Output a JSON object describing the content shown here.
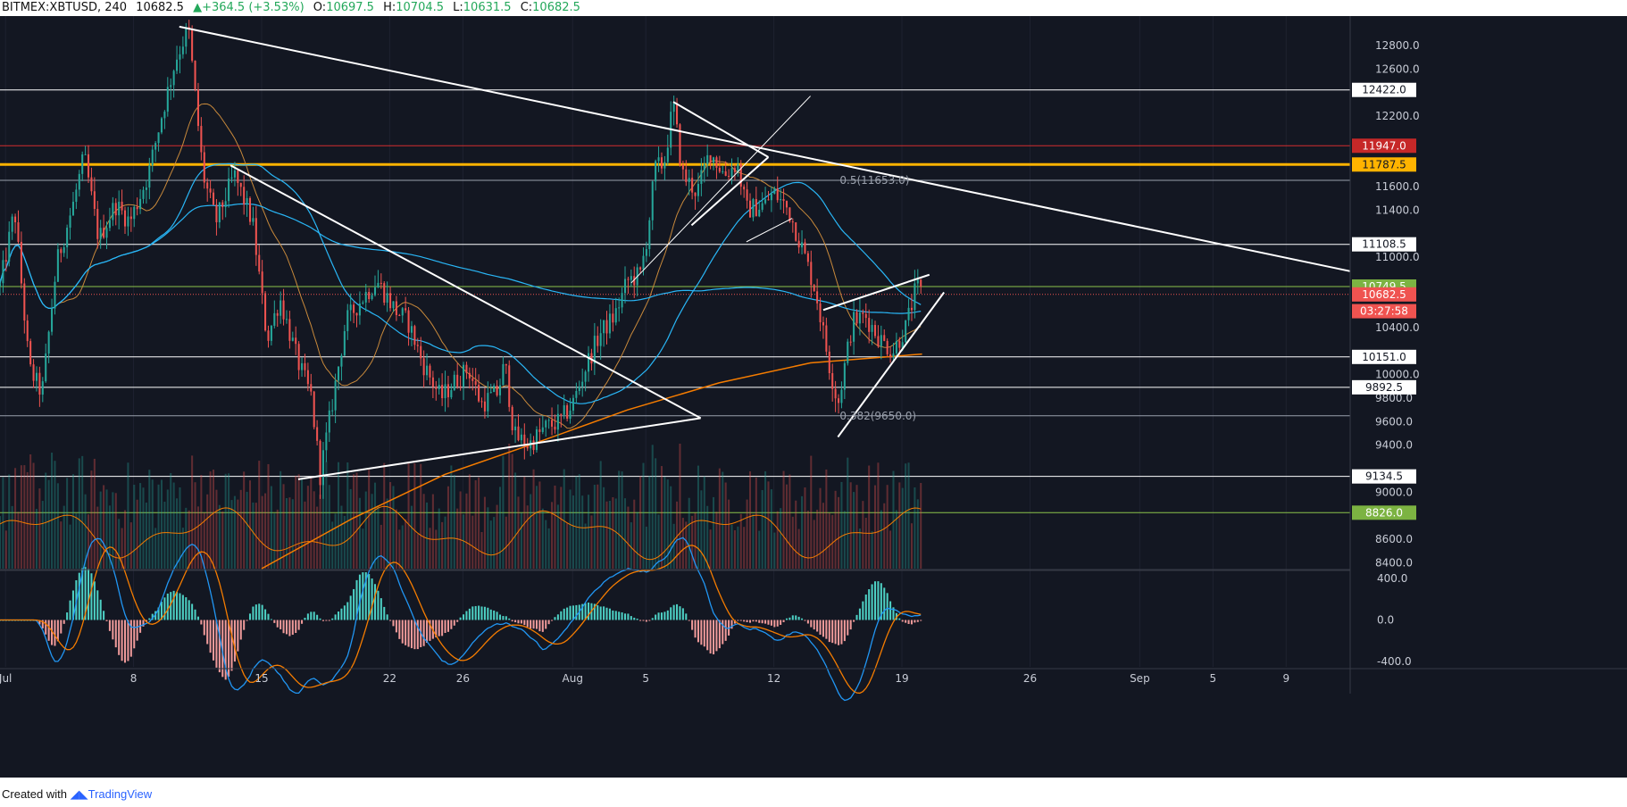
{
  "header": {
    "symbol": "BITMEX:XBTUSD, 240",
    "last": "10682.5",
    "change": "+364.5 (+3.53%)",
    "open_label": "O:",
    "open": "10697.5",
    "high_label": "H:",
    "high": "10704.5",
    "low_label": "L:",
    "low": "10631.5",
    "close_label": "C:",
    "close": "10682.5"
  },
  "footer": {
    "created_with": "Created with",
    "brand": "TradingView"
  },
  "colors": {
    "background": "#131722",
    "bull": "#26a69a",
    "bear": "#ef5350",
    "fib_618_line": "#8bc34a",
    "resistance_red": "#d32f2f",
    "resistance_gold": "#ffb300",
    "trendline": "#ffffff",
    "ma_orange": "#f57c00",
    "ma_blue": "#29b6f6",
    "ma_tan": "#c8893b"
  },
  "chart_data": {
    "type": "candlestick",
    "price_axis": {
      "ylim": [
        8350,
        13050
      ],
      "ticks": [
        "12800.0",
        "12600.0",
        "12200.0",
        "11600.0",
        "11400.0",
        "11000.0",
        "10400.0",
        "10000.0",
        "9800.0",
        "9600.0",
        "9400.0",
        "9000.0",
        "8600.0",
        "8400.0"
      ]
    },
    "time_axis": {
      "labels": [
        {
          "text": "Jul",
          "day": 1
        },
        {
          "text": "8",
          "day": 8
        },
        {
          "text": "15",
          "day": 15
        },
        {
          "text": "22",
          "day": 22
        },
        {
          "text": "26",
          "day": 26
        },
        {
          "text": "Aug",
          "day": 32
        },
        {
          "text": "5",
          "day": 36
        },
        {
          "text": "12",
          "day": 43
        },
        {
          "text": "19",
          "day": 50
        },
        {
          "text": "26",
          "day": 57
        },
        {
          "text": "Sep",
          "day": 63
        },
        {
          "text": "5",
          "day": 67
        },
        {
          "text": "9",
          "day": 71
        }
      ],
      "day_range": [
        0.7,
        74.5
      ]
    },
    "price_tags": [
      {
        "value": "12422.0",
        "price": 12422,
        "style": "white"
      },
      {
        "value": "11947.0",
        "price": 11947,
        "style": "red"
      },
      {
        "value": "11787.5",
        "price": 11787.5,
        "style": "gold"
      },
      {
        "value": "11108.5",
        "price": 11108.5,
        "style": "white"
      },
      {
        "value": "10749.5",
        "price": 10749.5,
        "style": "green"
      },
      {
        "value": "10682.5",
        "price": 10682.5,
        "style": "current"
      },
      {
        "value": "03:27:58",
        "price": 10540,
        "style": "timer"
      },
      {
        "value": "10151.0",
        "price": 10151,
        "style": "white"
      },
      {
        "value": "9892.5",
        "price": 9892.5,
        "style": "white"
      },
      {
        "value": "9134.5",
        "price": 9134.5,
        "style": "white"
      },
      {
        "value": "8826.0",
        "price": 8826,
        "style": "green"
      }
    ],
    "horizontal_levels": [
      {
        "price": 12422,
        "color": "#ffffff",
        "width": 1
      },
      {
        "price": 11947,
        "color": "#d32f2f",
        "width": 1
      },
      {
        "price": 11787.5,
        "color": "#ffb300",
        "width": 3
      },
      {
        "price": 11653,
        "color": "#9aa0ac",
        "width": 1
      },
      {
        "price": 11108.5,
        "color": "#ffffff",
        "width": 1
      },
      {
        "price": 10749.5,
        "color": "#8bc34a",
        "width": 1
      },
      {
        "price": 10151,
        "color": "#ffffff",
        "width": 1
      },
      {
        "price": 9892.5,
        "color": "#ffffff",
        "width": 1
      },
      {
        "price": 9650,
        "color": "#9aa0ac",
        "width": 1
      },
      {
        "price": 9134.5,
        "color": "#ffffff",
        "width": 1
      },
      {
        "price": 8826,
        "color": "#8bc34a",
        "width": 1
      }
    ],
    "fib_labels": [
      {
        "text": "0.5(11653.0)",
        "day": 46.6,
        "price": 11653
      },
      {
        "text": "0.382(9650.0)",
        "day": 46.6,
        "price": 9650
      }
    ],
    "trendlines": [
      {
        "from": [
          10.5,
          12960
        ],
        "to": [
          74.5,
          10880
        ],
        "width": 2
      },
      {
        "from": [
          13.3,
          11780
        ],
        "to": [
          39.0,
          9630
        ],
        "width": 2
      },
      {
        "from": [
          17.0,
          9110
        ],
        "to": [
          39.0,
          9630
        ],
        "width": 2
      },
      {
        "from": [
          37.5,
          12320
        ],
        "to": [
          42.7,
          11850
        ],
        "width": 2
      },
      {
        "from": [
          38.5,
          11270
        ],
        "to": [
          42.7,
          11850
        ],
        "width": 2
      },
      {
        "from": [
          45.7,
          10550
        ],
        "to": [
          51.5,
          10850
        ],
        "width": 2
      },
      {
        "from": [
          46.5,
          9470
        ],
        "to": [
          52.3,
          10700
        ],
        "width": 2
      },
      {
        "from": [
          35.2,
          10780
        ],
        "to": [
          45.0,
          12370
        ],
        "width": 1
      },
      {
        "from": [
          41.5,
          11130
        ],
        "to": [
          44.0,
          11330
        ],
        "width": 1
      }
    ],
    "anchors": [
      {
        "day": 0.7,
        "price": 10750
      },
      {
        "day": 1.5,
        "price": 11400
      },
      {
        "day": 2.3,
        "price": 10050
      },
      {
        "day": 3.0,
        "price": 9840
      },
      {
        "day": 3.8,
        "price": 10950
      },
      {
        "day": 4.7,
        "price": 11450
      },
      {
        "day": 5.3,
        "price": 11860
      },
      {
        "day": 6.1,
        "price": 11150
      },
      {
        "day": 7.0,
        "price": 11450
      },
      {
        "day": 7.8,
        "price": 11300
      },
      {
        "day": 8.8,
        "price": 11700
      },
      {
        "day": 9.5,
        "price": 12180
      },
      {
        "day": 10.3,
        "price": 12680
      },
      {
        "day": 11.0,
        "price": 12950
      },
      {
        "day": 11.8,
        "price": 11700
      },
      {
        "day": 12.5,
        "price": 11300
      },
      {
        "day": 13.5,
        "price": 11700
      },
      {
        "day": 14.5,
        "price": 11300
      },
      {
        "day": 15.3,
        "price": 10300
      },
      {
        "day": 16.0,
        "price": 10650
      },
      {
        "day": 17.0,
        "price": 10100
      },
      {
        "day": 17.7,
        "price": 9820
      },
      {
        "day": 18.2,
        "price": 9150
      },
      {
        "day": 18.8,
        "price": 9700
      },
      {
        "day": 19.6,
        "price": 10450
      },
      {
        "day": 20.5,
        "price": 10650
      },
      {
        "day": 21.3,
        "price": 10800
      },
      {
        "day": 22.3,
        "price": 10550
      },
      {
        "day": 23.0,
        "price": 10450
      },
      {
        "day": 23.8,
        "price": 10100
      },
      {
        "day": 24.8,
        "price": 9800
      },
      {
        "day": 25.6,
        "price": 9950
      },
      {
        "day": 26.3,
        "price": 10050
      },
      {
        "day": 27.0,
        "price": 9750
      },
      {
        "day": 27.9,
        "price": 9850
      },
      {
        "day": 28.3,
        "price": 10100
      },
      {
        "day": 28.8,
        "price": 9480
      },
      {
        "day": 29.6,
        "price": 9400
      },
      {
        "day": 30.5,
        "price": 9550
      },
      {
        "day": 31.3,
        "price": 9600
      },
      {
        "day": 32.0,
        "price": 9750
      },
      {
        "day": 32.8,
        "price": 10100
      },
      {
        "day": 33.5,
        "price": 10350
      },
      {
        "day": 34.3,
        "price": 10500
      },
      {
        "day": 35.0,
        "price": 10800
      },
      {
        "day": 35.7,
        "price": 10850
      },
      {
        "day": 36.1,
        "price": 11200
      },
      {
        "day": 36.5,
        "price": 11750
      },
      {
        "day": 37.0,
        "price": 11800
      },
      {
        "day": 37.5,
        "price": 12300
      },
      {
        "day": 38.0,
        "price": 11700
      },
      {
        "day": 38.8,
        "price": 11550
      },
      {
        "day": 39.5,
        "price": 11900
      },
      {
        "day": 40.3,
        "price": 11700
      },
      {
        "day": 41.0,
        "price": 11800
      },
      {
        "day": 41.5,
        "price": 11400
      },
      {
        "day": 42.5,
        "price": 11450
      },
      {
        "day": 43.0,
        "price": 11550
      },
      {
        "day": 43.8,
        "price": 11400
      },
      {
        "day": 44.5,
        "price": 11100
      },
      {
        "day": 45.3,
        "price": 10700
      },
      {
        "day": 46.0,
        "price": 10100
      },
      {
        "day": 46.5,
        "price": 9750
      },
      {
        "day": 47.3,
        "price": 10450
      },
      {
        "day": 48.0,
        "price": 10500
      },
      {
        "day": 48.8,
        "price": 10300
      },
      {
        "day": 49.5,
        "price": 10200
      },
      {
        "day": 50.2,
        "price": 10400
      },
      {
        "day": 50.8,
        "price": 10750
      },
      {
        "day": 51.1,
        "price": 10682
      }
    ]
  }
}
